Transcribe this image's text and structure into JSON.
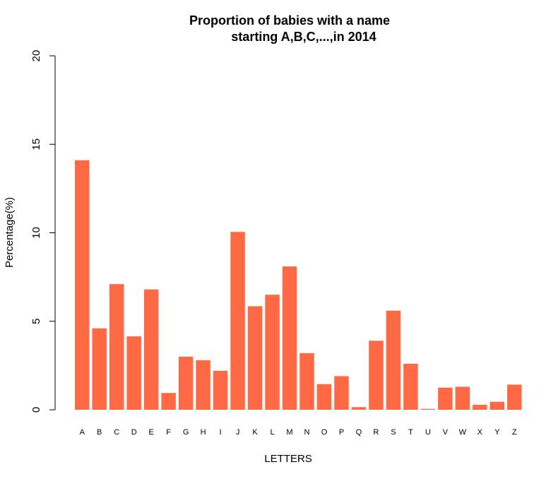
{
  "chart_data": {
    "type": "bar",
    "title_line1": "Proportion of babies with a name",
    "title_line2": "starting A,B,C,...,in 2014",
    "xlabel": "LETTERS",
    "ylabel": "Percentage(%)",
    "ylim": [
      0,
      20
    ],
    "yticks": [
      "0",
      "5",
      "10",
      "15",
      "20"
    ],
    "categories": [
      "A",
      "B",
      "C",
      "D",
      "E",
      "F",
      "G",
      "H",
      "I",
      "J",
      "K",
      "L",
      "M",
      "N",
      "O",
      "P",
      "Q",
      "R",
      "S",
      "T",
      "U",
      "V",
      "W",
      "X",
      "Y",
      "Z"
    ],
    "values": [
      14.1,
      4.6,
      7.1,
      4.15,
      6.8,
      0.95,
      3.0,
      2.8,
      2.2,
      10.05,
      5.85,
      6.5,
      8.1,
      3.2,
      1.45,
      1.9,
      0.15,
      3.9,
      5.6,
      2.6,
      0.05,
      1.25,
      1.3,
      0.28,
      0.45,
      1.42
    ],
    "bar_color": "#FF6A45",
    "grid": false,
    "legend": "none"
  }
}
